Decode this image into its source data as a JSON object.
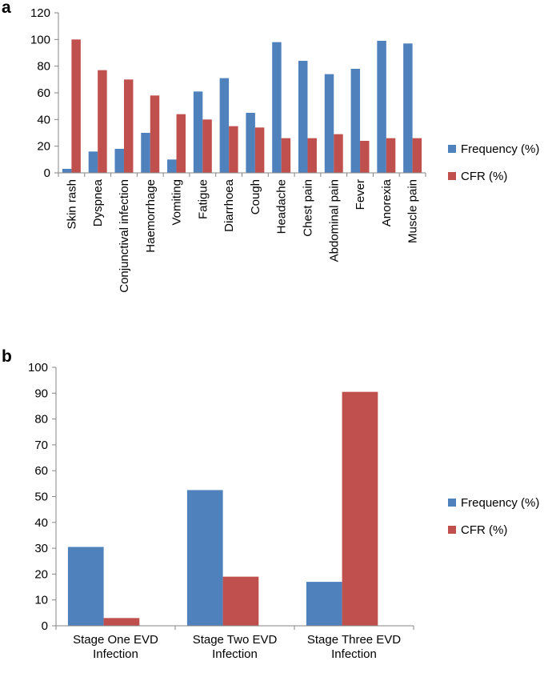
{
  "chart_data": [
    {
      "type": "bar",
      "panel_label": "a",
      "categories": [
        "Skin rash",
        "Dyspnea",
        "Conjunctival infection",
        "Haemorrhage",
        "Vomiting",
        "Fatigue",
        "Diarrhoea",
        "Cough",
        "Headache",
        "Chest pain",
        "Abdominal pain",
        "Fever",
        "Anorexia",
        "Muscle pain"
      ],
      "series": [
        {
          "name": "Frequency (%)",
          "color": "#4f81bd",
          "values": [
            3,
            16,
            18,
            30,
            10,
            61,
            71,
            45,
            98,
            84,
            74,
            78,
            99,
            97
          ]
        },
        {
          "name": "CFR (%)",
          "color": "#c0504d",
          "values": [
            100,
            77,
            70,
            58,
            44,
            40,
            35,
            34,
            26,
            26,
            29,
            24,
            26,
            26
          ]
        }
      ],
      "ylim": [
        0,
        120
      ],
      "yticks": [
        "0",
        "20",
        "40",
        "60",
        "80",
        "100",
        "120"
      ],
      "xlabel": "",
      "ylabel": "",
      "legend": "right"
    },
    {
      "type": "bar",
      "panel_label": "b",
      "categories": [
        [
          "Stage One EVD",
          "Infection"
        ],
        [
          "Stage Two EVD",
          "Infection"
        ],
        [
          "Stage Three EVD",
          "Infection"
        ]
      ],
      "series": [
        {
          "name": "Frequency (%)",
          "color": "#4f81bd",
          "values": [
            30.5,
            52.5,
            17
          ]
        },
        {
          "name": "CFR (%)",
          "color": "#c0504d",
          "values": [
            3,
            19,
            90.5
          ]
        }
      ],
      "ylim": [
        0,
        100
      ],
      "yticks": [
        "0",
        "10",
        "20",
        "30",
        "40",
        "50",
        "60",
        "70",
        "80",
        "90",
        "100"
      ],
      "xlabel": "",
      "ylabel": "",
      "legend": "right"
    }
  ]
}
